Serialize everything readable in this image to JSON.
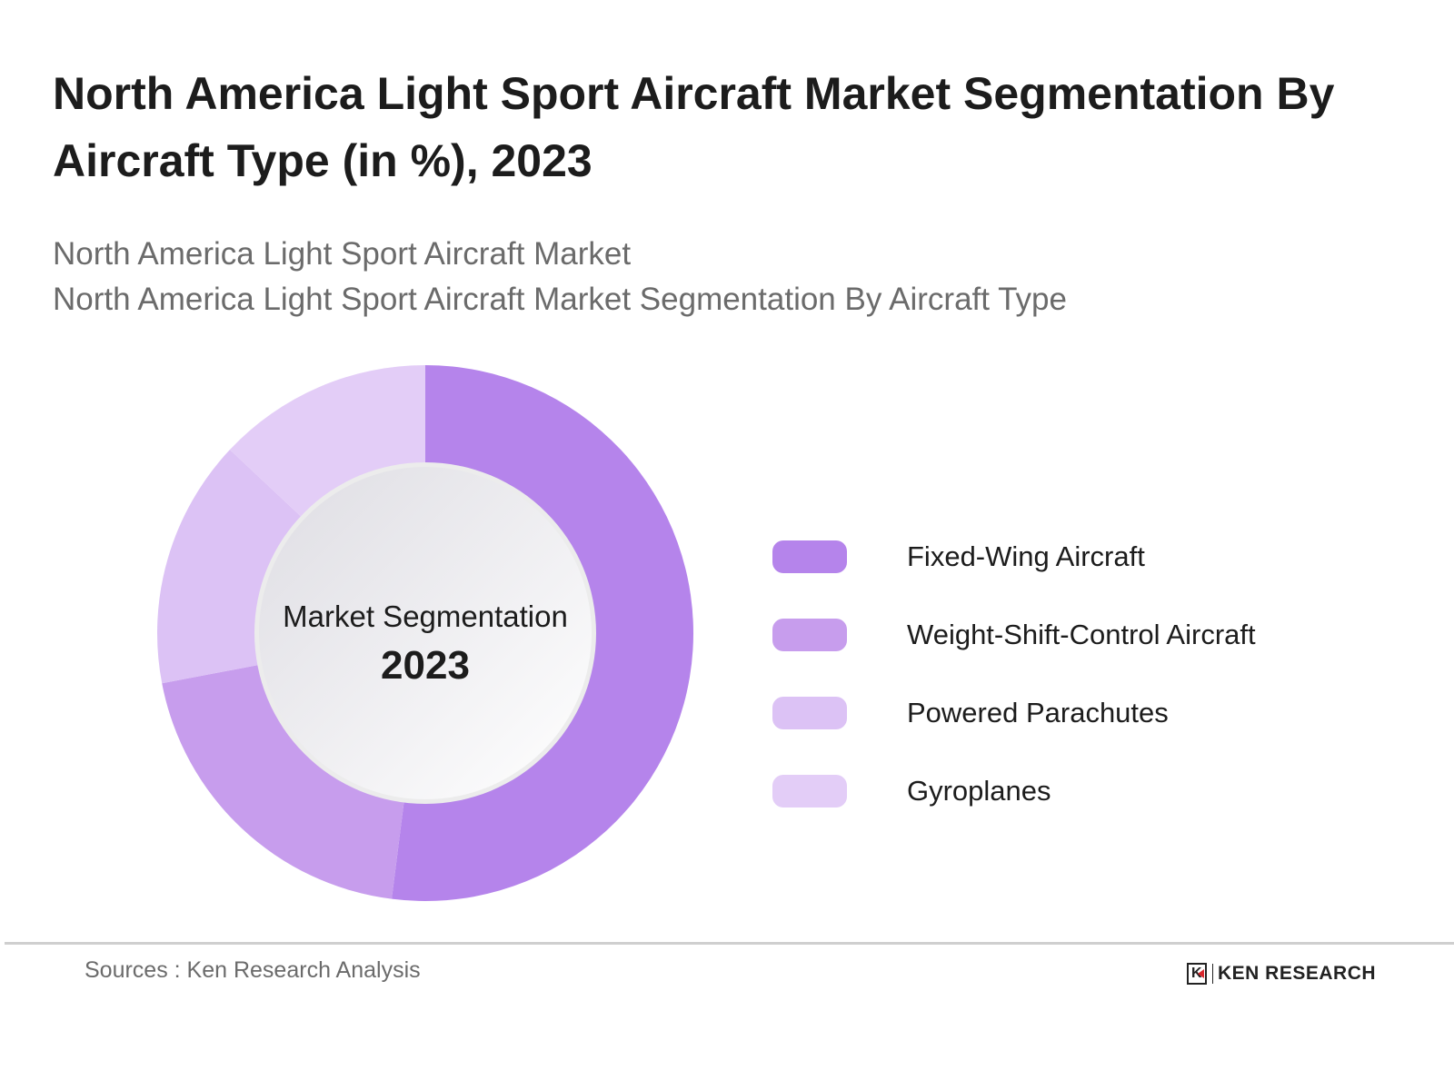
{
  "chart_data": {
    "type": "pie",
    "title": "North America Light Sport Aircraft Market Segmentation By Aircraft Type (in %), 2023",
    "subtitles": [
      "North America Light Sport Aircraft Market",
      "North America Light Sport Aircraft Market Segmentation By Aircraft Type"
    ],
    "donut": true,
    "center_label": "Market Segmentation",
    "center_year": "2023",
    "categories": [
      "Fixed-Wing Aircraft",
      "Weight-Shift-Control Aircraft",
      "Powered Parachutes",
      "Gyroplanes"
    ],
    "values": [
      52,
      20,
      15,
      13
    ],
    "colors": [
      "#b584eb",
      "#c79ded",
      "#dcc2f5",
      "#e3cdf7"
    ],
    "legend_position": "right"
  },
  "footer": {
    "source": "Sources : Ken Research Analysis",
    "logo_text": "KEN RESEARCH"
  }
}
